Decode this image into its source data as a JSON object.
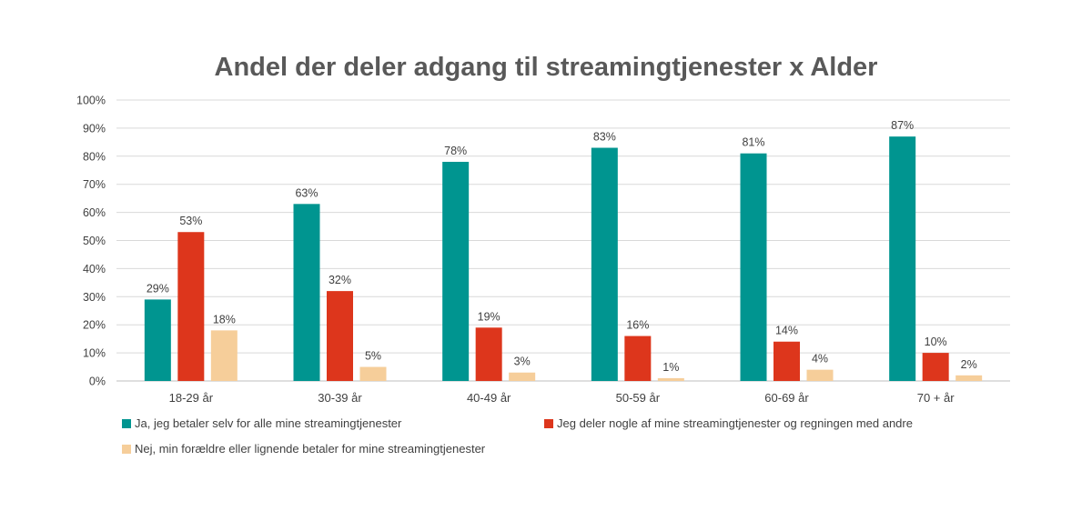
{
  "chart_data": {
    "type": "bar",
    "title": "Andel der deler adgang til streamingtjenester x Alder",
    "xlabel": "",
    "ylabel": "",
    "ylim": [
      0,
      100
    ],
    "yticks": [
      "0%",
      "10%",
      "20%",
      "30%",
      "40%",
      "50%",
      "60%",
      "70%",
      "80%",
      "90%",
      "100%"
    ],
    "grid": true,
    "legend_position": "bottom",
    "categories": [
      "18-29 år",
      "30-39 år",
      "40-49 år",
      "50-59 år",
      "60-69 år",
      "70 + år"
    ],
    "series": [
      {
        "name": "Ja, jeg betaler selv for alle mine streamingtjenester",
        "color": "#009590",
        "values": [
          29,
          63,
          78,
          83,
          81,
          87
        ],
        "labels": [
          "29%",
          "63%",
          "78%",
          "83%",
          "81%",
          "87%"
        ]
      },
      {
        "name": "Jeg deler nogle af mine streamingtjenester og regningen med andre",
        "color": "#DD361C",
        "values": [
          53,
          32,
          19,
          16,
          14,
          10
        ],
        "labels": [
          "53%",
          "32%",
          "19%",
          "16%",
          "14%",
          "10%"
        ]
      },
      {
        "name": "Nej, min forældre eller lignende betaler for mine streamingtjenester",
        "color": "#F6CE9A",
        "values": [
          18,
          5,
          3,
          1,
          4,
          2
        ],
        "labels": [
          "18%",
          "5%",
          "3%",
          "1%",
          "4%",
          "2%"
        ]
      }
    ]
  }
}
